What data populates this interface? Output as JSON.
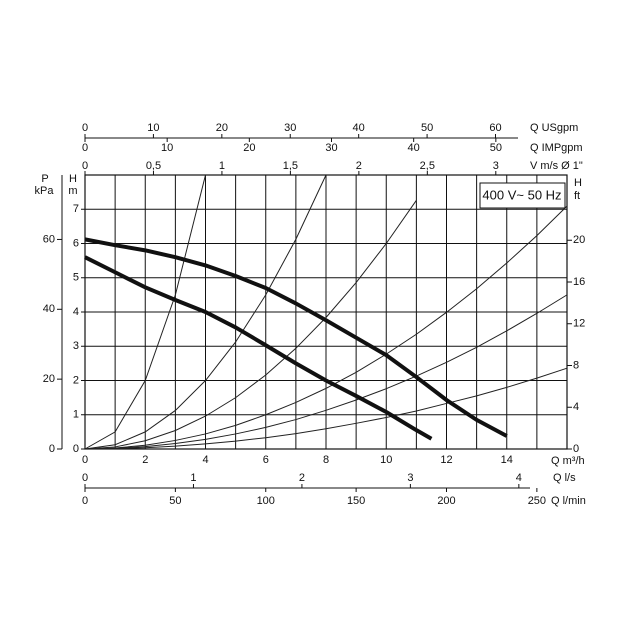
{
  "chart_data": {
    "type": "line",
    "annotation": "400 V~ 50 Hz",
    "xlabel": "Q m³/h",
    "xlim": [
      0,
      16
    ],
    "xticks": [
      0,
      2,
      4,
      6,
      8,
      10,
      12,
      14
    ],
    "xminorticks": [
      1,
      3,
      5,
      7,
      9,
      11,
      13,
      15
    ],
    "ylabel": "H",
    "yunit": "m",
    "ylim": [
      0,
      8
    ],
    "yticks": [
      0,
      1,
      2,
      3,
      4,
      5,
      6,
      7
    ],
    "grid": true,
    "left_axis": {
      "name": "P",
      "unit": "kPa",
      "lim": [
        0,
        78.45
      ],
      "ticks": [
        0,
        20,
        40,
        60
      ]
    },
    "right_axis": {
      "name": "H",
      "unit": "ft",
      "lim": [
        0,
        26.25
      ],
      "ticks": [
        0,
        4,
        8,
        12,
        16,
        20
      ]
    },
    "top_axes": [
      {
        "label": "Q USgpm",
        "lim": [
          0,
          70.45
        ],
        "ticks": [
          0,
          10,
          20,
          30,
          40,
          50,
          60
        ]
      },
      {
        "label": "Q IMPgpm",
        "lim": [
          0,
          58.66
        ],
        "ticks": [
          0,
          10,
          20,
          30,
          40,
          50
        ]
      },
      {
        "label": "V m/s Ø 1\"",
        "lim": [
          0,
          3.52
        ],
        "ticks": [
          0,
          {
            "value": 0.5,
            "label": "0,5"
          },
          1,
          {
            "value": 1.5,
            "label": "1,5"
          },
          2,
          {
            "value": 2.5,
            "label": "2,5"
          },
          3
        ]
      }
    ],
    "bottom_axes": [
      {
        "label": "Q l/s",
        "lim": [
          0,
          4.444
        ],
        "ticks": [
          0,
          1,
          2,
          3,
          4
        ]
      },
      {
        "label": "Q l/min",
        "lim": [
          0,
          266.67
        ],
        "ticks": [
          0,
          50,
          100,
          150,
          200,
          250
        ]
      }
    ],
    "series": [
      {
        "color": "#111111",
        "x": [
          0,
          1,
          2,
          3,
          4,
          5,
          6,
          7,
          8,
          9,
          10,
          11,
          12,
          13,
          14
        ],
        "values": [
          6.12,
          5.95,
          5.8,
          5.6,
          5.36,
          5.05,
          4.7,
          4.25,
          3.76,
          3.25,
          2.74,
          2.1,
          1.43,
          0.85,
          0.38
        ]
      },
      {
        "color": "#111111",
        "x": [
          0,
          1,
          2,
          3,
          4,
          5,
          6,
          7,
          8,
          9,
          10,
          11,
          11.5
        ],
        "values": [
          5.6,
          5.16,
          4.72,
          4.35,
          4.0,
          3.55,
          3.03,
          2.5,
          2.0,
          1.55,
          1.08,
          0.55,
          0.3
        ]
      }
    ],
    "system_curves": {
      "color": "#222222",
      "x": [
        0,
        1,
        2,
        3,
        4,
        5,
        6,
        7,
        8,
        9,
        10,
        11,
        12,
        13,
        14,
        15,
        16
      ],
      "series": [
        {
          "values": [
            0,
            0.5,
            2,
            4.5,
            8,
            null,
            null,
            null,
            null,
            null,
            null,
            null,
            null,
            null,
            null,
            null,
            null
          ]
        },
        {
          "values": [
            0,
            0.125,
            0.5,
            1.125,
            2,
            3.125,
            4.5,
            6.125,
            8,
            null,
            null,
            null,
            null,
            null,
            null,
            null,
            null
          ]
        },
        {
          "values": [
            0,
            0.06,
            0.24,
            0.54,
            0.96,
            1.5,
            2.16,
            2.94,
            3.84,
            4.86,
            6,
            7.26,
            null,
            null,
            null,
            null,
            null
          ]
        },
        {
          "values": [
            0,
            0.028,
            0.11,
            0.25,
            0.44,
            0.69,
            1.0,
            1.36,
            1.77,
            2.24,
            2.77,
            3.35,
            3.99,
            4.68,
            5.43,
            6.23,
            7.09
          ]
        },
        {
          "values": [
            0,
            0.018,
            0.07,
            0.16,
            0.28,
            0.44,
            0.63,
            0.86,
            1.13,
            1.43,
            1.76,
            2.13,
            2.53,
            2.97,
            3.45,
            3.96,
            4.5
          ]
        },
        {
          "values": [
            0,
            0.009,
            0.037,
            0.083,
            0.15,
            0.23,
            0.33,
            0.45,
            0.59,
            0.75,
            0.92,
            1.11,
            1.33,
            1.55,
            1.8,
            2.07,
            2.36
          ]
        }
      ]
    }
  }
}
